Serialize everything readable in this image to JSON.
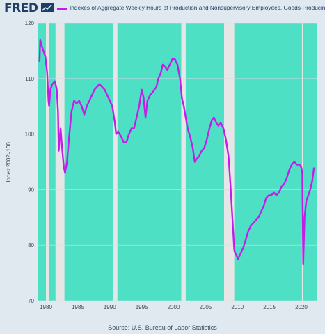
{
  "brand": {
    "logo_text": "FRED",
    "logo_icon": "trend-line-icon"
  },
  "colors": {
    "series": "#c21fe6",
    "recession_fill": "#e6e6e6",
    "expansion_fill": "#4ee0c4",
    "background": "#e1e9f0"
  },
  "source_text": "Source: U.S. Bureau of Labor Statistics",
  "chart_data": {
    "type": "line",
    "title": "",
    "ylabel": "Index 2002=100",
    "xlabel": "",
    "series": [
      {
        "name": "Indexes of Aggregate Weekly Hours of Production and Nonsupervisory Employees, Goods-Producing",
        "points": [
          [
            1979.0,
            113
          ],
          [
            1979.1,
            117
          ],
          [
            1979.3,
            116
          ],
          [
            1979.6,
            115
          ],
          [
            1979.9,
            114
          ],
          [
            1980.2,
            111
          ],
          [
            1980.4,
            106
          ],
          [
            1980.5,
            105
          ],
          [
            1980.7,
            108
          ],
          [
            1981.0,
            109
          ],
          [
            1981.4,
            109.5
          ],
          [
            1981.7,
            108
          ],
          [
            1981.9,
            104
          ],
          [
            1982.0,
            97
          ],
          [
            1982.3,
            101
          ],
          [
            1982.5,
            98
          ],
          [
            1982.8,
            94
          ],
          [
            1983.0,
            93
          ],
          [
            1983.3,
            95
          ],
          [
            1983.6,
            99
          ],
          [
            1984.0,
            104
          ],
          [
            1984.4,
            106
          ],
          [
            1984.8,
            105.5
          ],
          [
            1985.2,
            106
          ],
          [
            1985.6,
            105
          ],
          [
            1986.0,
            103.5
          ],
          [
            1986.4,
            105
          ],
          [
            1986.8,
            106
          ],
          [
            1987.2,
            107
          ],
          [
            1987.6,
            108
          ],
          [
            1988.0,
            108.5
          ],
          [
            1988.4,
            109
          ],
          [
            1988.8,
            108.5
          ],
          [
            1989.2,
            108
          ],
          [
            1989.6,
            107
          ],
          [
            1990.0,
            106
          ],
          [
            1990.4,
            105
          ],
          [
            1990.8,
            102
          ],
          [
            1991.0,
            100
          ],
          [
            1991.3,
            100.5
          ],
          [
            1991.8,
            99.5
          ],
          [
            1992.2,
            98.5
          ],
          [
            1992.6,
            98.5
          ],
          [
            1993.0,
            100
          ],
          [
            1993.4,
            101
          ],
          [
            1993.8,
            101
          ],
          [
            1994.2,
            103
          ],
          [
            1994.6,
            105
          ],
          [
            1995.0,
            108
          ],
          [
            1995.3,
            106.5
          ],
          [
            1995.6,
            103
          ],
          [
            1995.9,
            106
          ],
          [
            1996.3,
            107
          ],
          [
            1996.7,
            107.5
          ],
          [
            1997.0,
            108
          ],
          [
            1997.3,
            108.5
          ],
          [
            1997.6,
            110
          ],
          [
            1998.0,
            111
          ],
          [
            1998.3,
            112.5
          ],
          [
            1998.7,
            112
          ],
          [
            1999.0,
            111.5
          ],
          [
            1999.4,
            112.5
          ],
          [
            1999.8,
            113.5
          ],
          [
            2000.2,
            113.5
          ],
          [
            2000.6,
            112.5
          ],
          [
            2001.0,
            110
          ],
          [
            2001.3,
            106.5
          ],
          [
            2001.6,
            105
          ],
          [
            2001.9,
            103
          ],
          [
            2002.2,
            101
          ],
          [
            2002.6,
            99.5
          ],
          [
            2003.0,
            97.5
          ],
          [
            2003.3,
            95
          ],
          [
            2003.6,
            95.5
          ],
          [
            2004.0,
            96
          ],
          [
            2004.4,
            97
          ],
          [
            2004.8,
            97.5
          ],
          [
            2005.2,
            99
          ],
          [
            2005.6,
            101
          ],
          [
            2006.0,
            102.5
          ],
          [
            2006.3,
            103
          ],
          [
            2006.7,
            102
          ],
          [
            2007.0,
            101.5
          ],
          [
            2007.4,
            102
          ],
          [
            2007.8,
            101
          ],
          [
            2008.2,
            99
          ],
          [
            2008.6,
            96
          ],
          [
            2008.9,
            91
          ],
          [
            2009.2,
            85
          ],
          [
            2009.5,
            79
          ],
          [
            2009.9,
            78
          ],
          [
            2010.1,
            77.5
          ],
          [
            2010.5,
            78.5
          ],
          [
            2010.9,
            79.5
          ],
          [
            2011.3,
            81
          ],
          [
            2011.7,
            82.5
          ],
          [
            2012.1,
            83.5
          ],
          [
            2012.5,
            84
          ],
          [
            2012.9,
            84.5
          ],
          [
            2013.3,
            85
          ],
          [
            2013.7,
            86
          ],
          [
            2014.1,
            87
          ],
          [
            2014.5,
            88.5
          ],
          [
            2014.9,
            89
          ],
          [
            2015.3,
            89
          ],
          [
            2015.7,
            89.5
          ],
          [
            2016.1,
            89
          ],
          [
            2016.5,
            89.5
          ],
          [
            2016.9,
            90.5
          ],
          [
            2017.3,
            91
          ],
          [
            2017.7,
            92
          ],
          [
            2018.1,
            93.5
          ],
          [
            2018.5,
            94.5
          ],
          [
            2018.9,
            95
          ],
          [
            2019.3,
            94.5
          ],
          [
            2019.7,
            94.5
          ],
          [
            2020.0,
            94
          ],
          [
            2020.15,
            93
          ],
          [
            2020.3,
            76.5
          ],
          [
            2020.5,
            85
          ],
          [
            2020.8,
            88
          ],
          [
            2021.1,
            89
          ],
          [
            2021.4,
            90
          ],
          [
            2021.7,
            91.5
          ],
          [
            2022.0,
            94
          ]
        ]
      }
    ],
    "recessions": [
      [
        1980.0,
        1980.5
      ],
      [
        1981.5,
        1982.9
      ],
      [
        1990.5,
        1991.2
      ],
      [
        2001.2,
        2001.9
      ],
      [
        2007.9,
        2009.5
      ],
      [
        2020.1,
        2020.3
      ]
    ],
    "xlim": [
      1978.8,
      2022.4
    ],
    "ylim": [
      70,
      120
    ],
    "x_ticks": [
      "1980",
      "1985",
      "1990",
      "1995",
      "2000",
      "2005",
      "2010",
      "2015",
      "2020"
    ],
    "x_tick_values": [
      1980,
      1985,
      1990,
      1995,
      2000,
      2005,
      2010,
      2015,
      2020
    ],
    "y_ticks": [
      "70",
      "80",
      "90",
      "100",
      "110",
      "120"
    ],
    "y_tick_values": [
      70,
      80,
      90,
      100,
      110,
      120
    ],
    "grid": "horizontal",
    "legend_position": "top"
  }
}
